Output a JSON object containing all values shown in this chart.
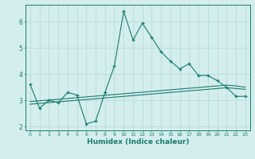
{
  "xlabel": "Humidex (Indice chaleur)",
  "background_color": "#d4eeee",
  "grid_color": "#c0dede",
  "line_color": "#1a7a6e",
  "x_values": [
    0,
    1,
    2,
    3,
    4,
    5,
    6,
    7,
    8,
    9,
    10,
    11,
    12,
    13,
    14,
    15,
    16,
    17,
    18,
    19,
    20,
    21,
    22,
    23
  ],
  "y_main": [
    3.6,
    2.7,
    3.0,
    2.9,
    3.3,
    3.2,
    2.1,
    2.2,
    3.3,
    4.3,
    6.4,
    5.3,
    5.95,
    5.4,
    4.85,
    4.5,
    4.2,
    4.4,
    3.95,
    3.95,
    3.75,
    3.5,
    3.15,
    3.15
  ],
  "y_trend1": [
    2.85,
    2.88,
    2.91,
    2.94,
    2.97,
    3.0,
    3.03,
    3.06,
    3.09,
    3.12,
    3.15,
    3.18,
    3.21,
    3.24,
    3.27,
    3.3,
    3.33,
    3.36,
    3.39,
    3.42,
    3.45,
    3.48,
    3.45,
    3.42
  ],
  "y_trend2": [
    2.95,
    2.98,
    3.01,
    3.04,
    3.07,
    3.1,
    3.13,
    3.16,
    3.19,
    3.22,
    3.25,
    3.28,
    3.31,
    3.34,
    3.37,
    3.4,
    3.43,
    3.46,
    3.49,
    3.52,
    3.55,
    3.58,
    3.55,
    3.5
  ],
  "ylim": [
    1.85,
    6.65
  ],
  "yticks": [
    2,
    3,
    4,
    5,
    6
  ],
  "xticks": [
    0,
    1,
    2,
    3,
    4,
    5,
    6,
    7,
    8,
    9,
    10,
    11,
    12,
    13,
    14,
    15,
    16,
    17,
    18,
    19,
    20,
    21,
    22,
    23
  ]
}
